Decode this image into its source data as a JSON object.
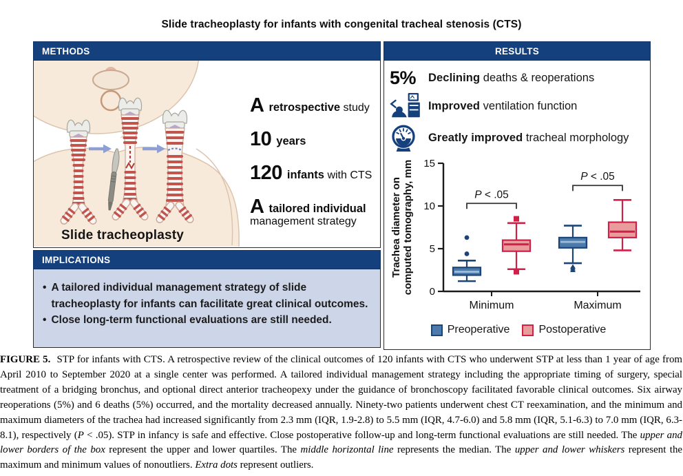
{
  "title": "Slide tracheoplasty for infants with congenital tracheal stenosis (CTS)",
  "colors": {
    "navy": "#14407E",
    "implications_bg": "#CDD5E8",
    "preoperative_fill": "#4C7AAB",
    "preoperative_stroke": "#1B4577",
    "postoperative_fill": "#EA9C9C",
    "postoperative_stroke": "#CE2049"
  },
  "methods": {
    "header": "METHODS",
    "illustration_label": "Slide tracheoplasty",
    "stats": [
      {
        "big": "A",
        "bold": "retrospective",
        "rest": "study"
      },
      {
        "big": "10",
        "bold": "years",
        "rest": ""
      },
      {
        "big": "120",
        "bold": "infants",
        "rest": "with CTS"
      },
      {
        "big": "A",
        "bold": "tailored individual",
        "rest": "",
        "line2": "management strategy"
      }
    ]
  },
  "implications": {
    "header": "IMPLICATIONS",
    "bullets": [
      "A tailored individual management strategy of slide tracheoplasty for infants can facilitate great clinical outcomes.",
      "Close long-term functional evaluations are still needed."
    ]
  },
  "results": {
    "header": "RESULTS",
    "items": [
      {
        "stat": "5%",
        "bold": "Declining",
        "rest": "deaths & reoperations"
      },
      {
        "icon": "ventilator-icon",
        "bold": "Improved",
        "rest": "ventilation function"
      },
      {
        "icon": "gauge-icon",
        "bold": "Greatly improved",
        "rest": "tracheal morphology"
      }
    ]
  },
  "chart_data": {
    "type": "boxplot",
    "ylabel_lines": [
      "Trachea diameter on",
      "computed tomography, mm"
    ],
    "ylim": [
      0,
      15
    ],
    "yticks": [
      0,
      5,
      10,
      15
    ],
    "categories": [
      "Minimum",
      "Maximum"
    ],
    "grid": false,
    "legend_position": "bottom",
    "series": [
      {
        "name": "Preoperative",
        "fill": "#4C7AAB",
        "stroke": "#1B4577",
        "median_color": "#9DB9D5",
        "boxes": [
          {
            "category": "Minimum",
            "whisker_low": 1.2,
            "q1": 1.9,
            "median": 2.3,
            "q3": 2.8,
            "whisker_high": 3.6,
            "outliers_high": [
              4.4,
              6.3
            ],
            "outliers_low": [],
            "outlier_marker": "circle"
          },
          {
            "category": "Maximum",
            "whisker_low": 3.3,
            "q1": 5.1,
            "median": 5.8,
            "q3": 6.3,
            "whisker_high": 7.7,
            "outliers_high": [],
            "outliers_low": [
              2.9,
              2.7,
              2.5
            ],
            "outlier_marker": "triangle"
          }
        ]
      },
      {
        "name": "Postoperative",
        "fill": "#EA9C9C",
        "stroke": "#CE2049",
        "median_color": "#CE2049",
        "boxes": [
          {
            "category": "Minimum",
            "whisker_low": 2.6,
            "q1": 4.7,
            "median": 5.5,
            "q3": 6.0,
            "whisker_high": 8.0,
            "outliers_high": [
              8.5
            ],
            "outliers_low": [
              2.3
            ],
            "outlier_marker": "square"
          },
          {
            "category": "Maximum",
            "whisker_low": 4.8,
            "q1": 6.3,
            "median": 7.0,
            "q3": 8.1,
            "whisker_high": 10.7,
            "outliers_high": [],
            "outliers_low": [],
            "outlier_marker": "square"
          }
        ]
      }
    ],
    "annotations": [
      {
        "category": "Minimum",
        "label_italic": "P",
        "label_rest": " < .05",
        "bracket_y": 10.3
      },
      {
        "category": "Maximum",
        "label_italic": "P",
        "label_rest": " < .05",
        "bracket_y": 12.4
      }
    ],
    "legend": [
      {
        "label": "Preoperative",
        "fill": "#4C7AAB",
        "stroke": "#1B4577"
      },
      {
        "label": "Postoperative",
        "fill": "#EA9C9C",
        "stroke": "#CE2049"
      }
    ]
  },
  "caption": {
    "segments": [
      "FIGURE 5.",
      " STP for infants with CTS. A retrospective review of the clinical outcomes of 120 infants with CTS who underwent STP at less than 1 year of age from April 2010 to September 2020 at a single center was performed. A tailored individual management strategy including the appropriate timing of surgery, special treatment of a bridging bronchus, and optional direct anterior tracheopexy under the guidance of bronchoscopy facilitated favorable clinical outcomes. Six airway reoperations (5%) and 6 deaths (5%) occurred, and the mortality decreased annually. Ninety-two patients underwent chest CT reexamination, and the minimum and maximum diameters of the trachea had increased significantly from 2.3 mm (IQR, 1.9-2.8) to 5.5 mm (IQR, 4.7-6.0) and 5.8 mm (IQR, 5.1-6.3) to 7.0 mm (IQR, 6.3-8.1), respectively (",
      "P",
      " < .05). STP in infancy is safe and effective. Close postoperative follow-up and long-term functional evaluations are still needed. The ",
      "upper and lower borders of the box",
      " represent the upper and lower quartiles. The ",
      "middle horizontal line",
      " represents the median. The ",
      "upper and lower whiskers",
      " represent the maximum and minimum values of nonoutliers. ",
      "Extra dots",
      " represent outliers."
    ]
  }
}
